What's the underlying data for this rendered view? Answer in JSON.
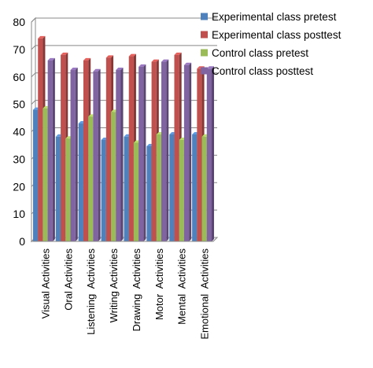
{
  "chart_data": {
    "type": "bar",
    "categories": [
      "Visual Activities",
      "Oral Activities",
      "Listening  Activities",
      "Writing Activities",
      "Drawing  Activities",
      "Motor  Activities",
      "Mental  Activities",
      "Emotional  Activities"
    ],
    "series": [
      {
        "name": "Experimental class pretest",
        "color": "#4F81BD",
        "values": [
          48,
          38.2,
          43,
          37,
          38.2,
          34.7,
          39,
          39
        ]
      },
      {
        "name": "Experimental class posttest",
        "color": "#C0504D",
        "values": [
          74,
          68,
          66,
          67,
          67.5,
          65.5,
          68,
          63
        ]
      },
      {
        "name": "Control class pretest",
        "color": "#9BBB59",
        "values": [
          48.5,
          37.5,
          45.5,
          47.2,
          36,
          39,
          37,
          38.2
        ]
      },
      {
        "name": "Control class posttest",
        "color": "#8064A2",
        "values": [
          66,
          62.5,
          62,
          62.5,
          63.7,
          65.5,
          64.3,
          63
        ]
      }
    ],
    "ylim": [
      0,
      80
    ],
    "yticks": [
      0,
      10,
      20,
      30,
      40,
      50,
      60,
      70,
      80
    ],
    "grid": true,
    "legend_position": "top-right"
  }
}
